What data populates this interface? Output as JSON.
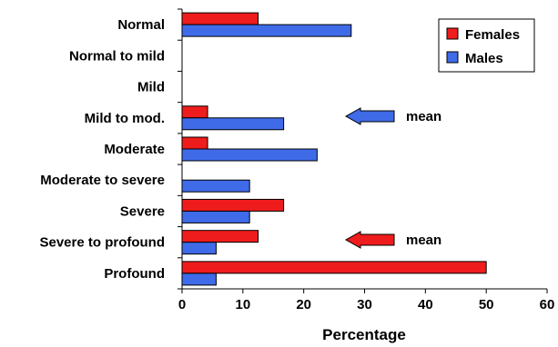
{
  "chart_data": {
    "type": "bar",
    "orientation": "horizontal",
    "categories": [
      "Normal",
      "Normal to mild",
      "Mild",
      "Mild to mod.",
      "Moderate",
      "Moderate to severe",
      "Severe",
      "Severe to profound",
      "Profound"
    ],
    "series": [
      {
        "name": "Females",
        "color": "#ee1c1c",
        "values": [
          12.5,
          0,
          0,
          4.2,
          4.2,
          0,
          16.7,
          12.5,
          50.0
        ]
      },
      {
        "name": "Males",
        "color": "#3f6be8",
        "values": [
          27.8,
          0,
          0,
          16.7,
          22.2,
          11.1,
          11.1,
          5.6,
          5.6
        ]
      }
    ],
    "xlabel": "Percentage",
    "ylabel": "",
    "xlim": [
      0,
      60
    ],
    "xticks": [
      0,
      10,
      20,
      30,
      40,
      50,
      60
    ],
    "grid": false,
    "legend_position": "top-right",
    "annotations": [
      {
        "text": "mean",
        "series": "Males",
        "category": "Mild to mod."
      },
      {
        "text": "mean",
        "series": "Females",
        "category": "Severe to profound"
      }
    ]
  }
}
